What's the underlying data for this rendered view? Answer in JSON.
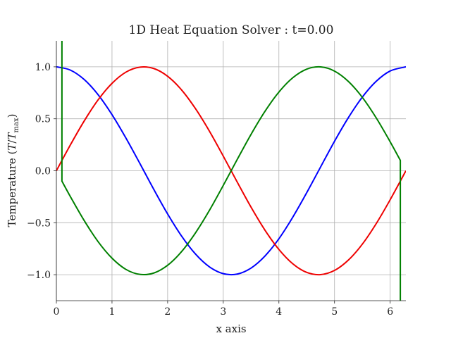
{
  "chart_data": {
    "type": "line",
    "title": "1D Heat Equation Solver : t=0.00",
    "xlabel": "x axis",
    "ylabel_main": "Temperature (",
    "ylabel_T": "T",
    "ylabel_slash": "/",
    "ylabel_Tmax_T": "T",
    "ylabel_Tmax_sub": "max",
    "ylabel_close": ")",
    "xlim": [
      0,
      6.283
    ],
    "ylim": [
      -1.25,
      1.25
    ],
    "grid": true,
    "x_ticks": [
      "0",
      "1",
      "2",
      "3",
      "4",
      "5",
      "6"
    ],
    "y_ticks": [
      "1.0",
      "0.5",
      "0.0",
      "−0.5",
      "−1.0"
    ],
    "x_tick_values": [
      0,
      1,
      2,
      3,
      4,
      5,
      6
    ],
    "y_tick_values": [
      1.0,
      0.5,
      0.0,
      -0.5,
      -1.0
    ],
    "series": [
      {
        "color": "#0000ff",
        "x": [
          0,
          0.25,
          0.5,
          0.75,
          1.0,
          1.25,
          1.5,
          1.75,
          2.0,
          2.25,
          2.5,
          2.75,
          3.0,
          3.25,
          3.5,
          3.75,
          4.0,
          4.25,
          4.5,
          4.75,
          5.0,
          5.25,
          5.5,
          5.75,
          6.0,
          6.283
        ],
        "y": [
          1.0,
          0.969,
          0.878,
          0.732,
          0.54,
          0.315,
          0.071,
          -0.178,
          -0.416,
          -0.628,
          -0.801,
          -0.924,
          -0.99,
          -0.994,
          -0.936,
          -0.82,
          -0.654,
          -0.446,
          -0.211,
          0.037,
          0.284,
          0.512,
          0.709,
          0.861,
          0.96,
          1.0
        ]
      },
      {
        "color": "#ee0000",
        "x": [
          0,
          0.25,
          0.5,
          0.75,
          1.0,
          1.25,
          1.5,
          1.75,
          2.0,
          2.25,
          2.5,
          2.75,
          3.0,
          3.25,
          3.5,
          3.75,
          4.0,
          4.25,
          4.5,
          4.75,
          5.0,
          5.25,
          5.5,
          5.75,
          6.0,
          6.283
        ],
        "y": [
          0.0,
          0.247,
          0.479,
          0.682,
          0.841,
          0.949,
          0.997,
          0.984,
          0.909,
          0.778,
          0.598,
          0.382,
          0.141,
          -0.108,
          -0.351,
          -0.572,
          -0.757,
          -0.895,
          -0.978,
          -0.999,
          -0.959,
          -0.859,
          -0.706,
          -0.508,
          -0.279,
          0.0
        ]
      },
      {
        "color": "#008000",
        "x": [
          0.1,
          0.1,
          0.25,
          0.5,
          0.75,
          1.0,
          1.25,
          1.5,
          1.75,
          2.0,
          2.25,
          2.5,
          2.75,
          3.0,
          3.25,
          3.5,
          3.75,
          4.0,
          4.25,
          4.5,
          4.75,
          5.0,
          5.25,
          5.5,
          5.75,
          6.0,
          6.183,
          6.183
        ],
        "y": [
          1.3,
          -0.1,
          -0.247,
          -0.479,
          -0.682,
          -0.841,
          -0.949,
          -0.997,
          -0.984,
          -0.909,
          -0.778,
          -0.598,
          -0.382,
          -0.141,
          0.108,
          0.351,
          0.572,
          0.757,
          0.895,
          0.978,
          0.999,
          0.959,
          0.859,
          0.706,
          0.508,
          0.279,
          0.1,
          -1.3
        ]
      }
    ]
  }
}
